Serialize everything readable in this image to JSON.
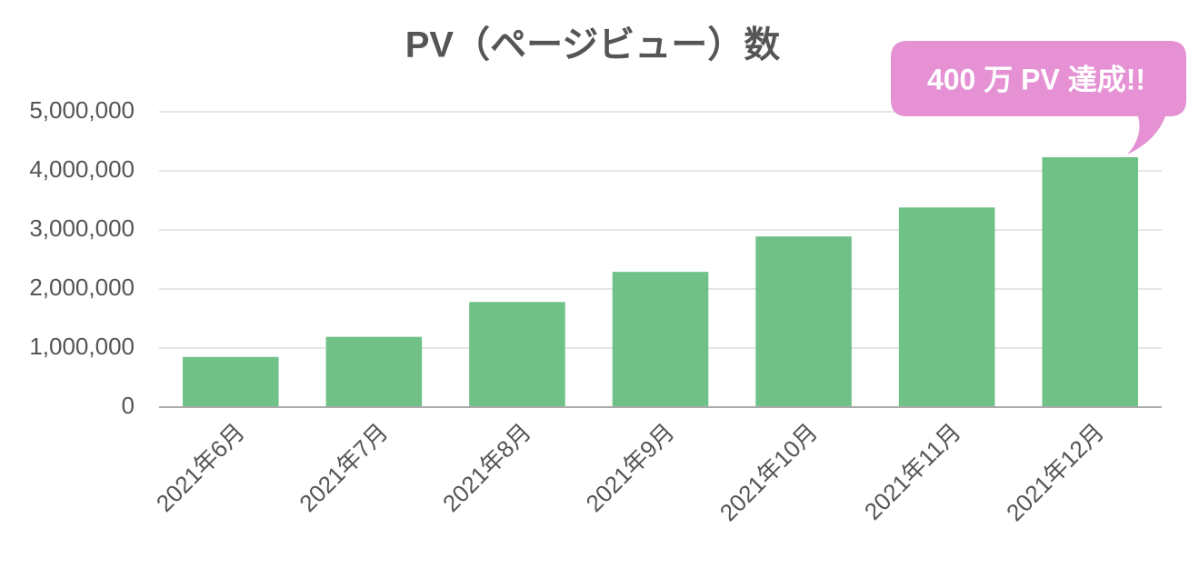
{
  "chart_data": {
    "type": "bar",
    "title": "PV（ページビュー）数",
    "annotation": "400 万 PV 達成!!",
    "categories": [
      "2021年6月",
      "2021年7月",
      "2021年8月",
      "2021年9月",
      "2021年10月",
      "2021年11月",
      "2021年12月"
    ],
    "values": [
      850000,
      1190000,
      1780000,
      2290000,
      2890000,
      3380000,
      4230000
    ],
    "color": "#70c187",
    "ylim": [
      0,
      5000000
    ],
    "yticks": [
      0,
      {
        "value": 1000000,
        "label": "1,000,000"
      },
      {
        "value": 2000000,
        "label": "2,000,000"
      },
      {
        "value": 3000000,
        "label": "3,000,000"
      },
      {
        "value": 4000000,
        "label": "4,000,000"
      },
      {
        "value": 5000000,
        "label": "5,000,000"
      }
    ],
    "grid": true
  }
}
